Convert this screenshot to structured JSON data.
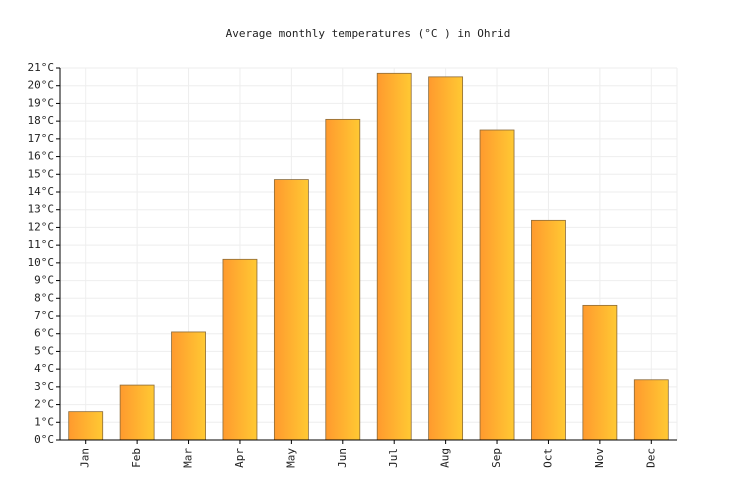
{
  "chart_data": {
    "type": "bar",
    "title": "Average monthly temperatures (°C ) in Ohrid",
    "categories": [
      "Jan",
      "Feb",
      "Mar",
      "Apr",
      "May",
      "Jun",
      "Jul",
      "Aug",
      "Sep",
      "Oct",
      "Nov",
      "Dec"
    ],
    "values": [
      1.6,
      3.1,
      6.1,
      10.2,
      14.7,
      18.1,
      20.7,
      20.5,
      17.5,
      12.4,
      7.6,
      3.4
    ],
    "colors": [
      "#ff9a2e",
      "#ffc933"
    ],
    "ylim": [
      0,
      21
    ],
    "yticks": [
      {
        "value": 0,
        "label": "0°C"
      },
      {
        "value": 1,
        "label": "1°C"
      },
      {
        "value": 2,
        "label": "2°C"
      },
      {
        "value": 3,
        "label": "3°C"
      },
      {
        "value": 4,
        "label": "4°C"
      },
      {
        "value": 5,
        "label": "5°C"
      },
      {
        "value": 6,
        "label": "6°C"
      },
      {
        "value": 7,
        "label": "7°C"
      },
      {
        "value": 8,
        "label": "8°C"
      },
      {
        "value": 9,
        "label": "9°C"
      },
      {
        "value": 10,
        "label": "10°C"
      },
      {
        "value": 11,
        "label": "11°C"
      },
      {
        "value": 12,
        "label": "12°C"
      },
      {
        "value": 13,
        "label": "13°C"
      },
      {
        "value": 14,
        "label": "14°C"
      },
      {
        "value": 15,
        "label": "15°C"
      },
      {
        "value": 16,
        "label": "16°C"
      },
      {
        "value": 17,
        "label": "17°C"
      },
      {
        "value": 18,
        "label": "18°C"
      },
      {
        "value": 19,
        "label": "19°C"
      },
      {
        "value": 20,
        "label": "20°C"
      },
      {
        "value": 21,
        "label": "21°C"
      }
    ],
    "grid": true
  }
}
